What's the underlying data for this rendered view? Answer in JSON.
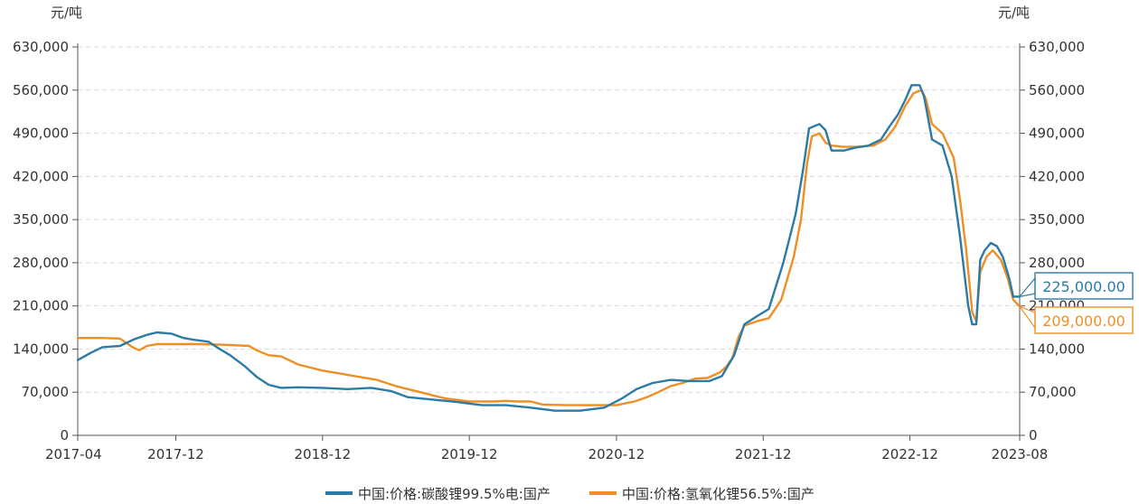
{
  "chart_data": {
    "type": "line",
    "y_unit_left": "元/吨",
    "y_unit_right": "元/吨",
    "ylim": [
      0,
      630000
    ],
    "y_ticks": [
      0,
      70000,
      140000,
      210000,
      280000,
      350000,
      420000,
      490000,
      560000,
      630000
    ],
    "y_tick_labels": [
      "0",
      "70,000",
      "140,000",
      "210,000",
      "280,000",
      "350,000",
      "420,000",
      "490,000",
      "560,000",
      "630,000"
    ],
    "x_range": [
      "2017-04-01",
      "2023-08-31"
    ],
    "x_ticks": [
      "2017-04-01",
      "2017-12-01",
      "2018-12-01",
      "2019-12-01",
      "2020-12-01",
      "2021-12-01",
      "2022-12-01",
      "2023-08-31"
    ],
    "x_tick_labels": [
      "2017-04",
      "2017-12",
      "2018-12",
      "2019-12",
      "2020-12",
      "2021-12",
      "2022-12",
      "2023-08"
    ],
    "grid": true,
    "legend_position": "bottom",
    "series": [
      {
        "name": "中国:价格:碳酸锂99.5%电:国产",
        "color": "#2b7ba6",
        "end_label": "225,000.00",
        "points": [
          [
            "2017-04-01",
            122000
          ],
          [
            "2017-05-01",
            133000
          ],
          [
            "2017-06-01",
            143000
          ],
          [
            "2017-07-15",
            145000
          ],
          [
            "2017-08-20",
            156000
          ],
          [
            "2017-09-20",
            163000
          ],
          [
            "2017-10-15",
            167000
          ],
          [
            "2017-11-20",
            165000
          ],
          [
            "2017-12-20",
            158000
          ],
          [
            "2018-01-15",
            155000
          ],
          [
            "2018-02-20",
            152000
          ],
          [
            "2018-03-20",
            140000
          ],
          [
            "2018-04-15",
            130000
          ],
          [
            "2018-05-20",
            113000
          ],
          [
            "2018-06-20",
            95000
          ],
          [
            "2018-07-20",
            82000
          ],
          [
            "2018-08-20",
            77000
          ],
          [
            "2018-10-01",
            78000
          ],
          [
            "2018-12-01",
            77000
          ],
          [
            "2019-02-01",
            75000
          ],
          [
            "2019-04-01",
            77000
          ],
          [
            "2019-05-20",
            72000
          ],
          [
            "2019-07-01",
            62000
          ],
          [
            "2019-09-01",
            58000
          ],
          [
            "2019-11-01",
            54000
          ],
          [
            "2020-01-01",
            49000
          ],
          [
            "2020-03-01",
            49000
          ],
          [
            "2020-05-01",
            45000
          ],
          [
            "2020-07-01",
            40000
          ],
          [
            "2020-09-01",
            40000
          ],
          [
            "2020-11-01",
            45000
          ],
          [
            "2020-12-15",
            60000
          ],
          [
            "2021-01-20",
            75000
          ],
          [
            "2021-03-01",
            85000
          ],
          [
            "2021-04-15",
            90000
          ],
          [
            "2021-06-01",
            88000
          ],
          [
            "2021-07-20",
            88000
          ],
          [
            "2021-08-20",
            96000
          ],
          [
            "2021-09-20",
            130000
          ],
          [
            "2021-10-15",
            180000
          ],
          [
            "2021-11-15",
            193000
          ],
          [
            "2021-12-15",
            205000
          ],
          [
            "2022-01-20",
            280000
          ],
          [
            "2022-02-20",
            360000
          ],
          [
            "2022-03-10",
            430000
          ],
          [
            "2022-03-25",
            498000
          ],
          [
            "2022-04-20",
            505000
          ],
          [
            "2022-05-05",
            495000
          ],
          [
            "2022-05-20",
            462000
          ],
          [
            "2022-06-20",
            462000
          ],
          [
            "2022-07-20",
            467000
          ],
          [
            "2022-08-20",
            470000
          ],
          [
            "2022-09-20",
            480000
          ],
          [
            "2022-10-10",
            500000
          ],
          [
            "2022-11-01",
            520000
          ],
          [
            "2022-11-20",
            545000
          ],
          [
            "2022-12-05",
            568000
          ],
          [
            "2022-12-25",
            568000
          ],
          [
            "2023-01-05",
            550000
          ],
          [
            "2023-01-25",
            480000
          ],
          [
            "2023-02-20",
            470000
          ],
          [
            "2023-03-15",
            420000
          ],
          [
            "2023-04-05",
            320000
          ],
          [
            "2023-04-25",
            210000
          ],
          [
            "2023-05-05",
            180000
          ],
          [
            "2023-05-15",
            180000
          ],
          [
            "2023-05-25",
            285000
          ],
          [
            "2023-06-05",
            300000
          ],
          [
            "2023-06-20",
            312000
          ],
          [
            "2023-07-05",
            307000
          ],
          [
            "2023-07-20",
            290000
          ],
          [
            "2023-08-05",
            255000
          ],
          [
            "2023-08-15",
            225000
          ],
          [
            "2023-08-31",
            225000
          ]
        ]
      },
      {
        "name": "中国:价格:氢氧化锂56.5%:国产",
        "color": "#ee8f26",
        "end_label": "209,000.00",
        "points": [
          [
            "2017-04-01",
            158000
          ],
          [
            "2017-06-01",
            158000
          ],
          [
            "2017-07-15",
            157000
          ],
          [
            "2017-08-15",
            143000
          ],
          [
            "2017-09-01",
            138000
          ],
          [
            "2017-09-20",
            145000
          ],
          [
            "2017-10-15",
            148000
          ],
          [
            "2017-11-20",
            148000
          ],
          [
            "2017-12-20",
            148000
          ],
          [
            "2018-02-01",
            148000
          ],
          [
            "2018-04-01",
            147000
          ],
          [
            "2018-06-01",
            145000
          ],
          [
            "2018-06-20",
            138000
          ],
          [
            "2018-07-20",
            130000
          ],
          [
            "2018-08-20",
            128000
          ],
          [
            "2018-10-01",
            115000
          ],
          [
            "2018-12-01",
            105000
          ],
          [
            "2019-01-15",
            100000
          ],
          [
            "2019-03-01",
            95000
          ],
          [
            "2019-04-15",
            90000
          ],
          [
            "2019-06-01",
            80000
          ],
          [
            "2019-08-01",
            70000
          ],
          [
            "2019-10-01",
            60000
          ],
          [
            "2019-12-01",
            55000
          ],
          [
            "2020-02-01",
            55000
          ],
          [
            "2020-03-01",
            56000
          ],
          [
            "2020-04-01",
            55000
          ],
          [
            "2020-05-01",
            55000
          ],
          [
            "2020-06-01",
            50000
          ],
          [
            "2020-08-01",
            49000
          ],
          [
            "2020-10-01",
            49000
          ],
          [
            "2020-12-01",
            49000
          ],
          [
            "2021-01-15",
            55000
          ],
          [
            "2021-02-15",
            62000
          ],
          [
            "2021-03-15",
            70000
          ],
          [
            "2021-04-15",
            80000
          ],
          [
            "2021-05-15",
            85000
          ],
          [
            "2021-06-15",
            92000
          ],
          [
            "2021-07-15",
            93000
          ],
          [
            "2021-08-15",
            102000
          ],
          [
            "2021-09-01",
            112000
          ],
          [
            "2021-09-15",
            125000
          ],
          [
            "2021-10-01",
            160000
          ],
          [
            "2021-10-15",
            178000
          ],
          [
            "2021-11-15",
            185000
          ],
          [
            "2021-12-15",
            190000
          ],
          [
            "2022-01-15",
            220000
          ],
          [
            "2022-02-15",
            290000
          ],
          [
            "2022-03-05",
            350000
          ],
          [
            "2022-03-20",
            440000
          ],
          [
            "2022-04-01",
            485000
          ],
          [
            "2022-04-20",
            490000
          ],
          [
            "2022-05-05",
            475000
          ],
          [
            "2022-05-20",
            470000
          ],
          [
            "2022-06-20",
            468000
          ],
          [
            "2022-07-20",
            468000
          ],
          [
            "2022-09-01",
            470000
          ],
          [
            "2022-10-01",
            480000
          ],
          [
            "2022-10-25",
            500000
          ],
          [
            "2022-11-20",
            535000
          ],
          [
            "2022-12-10",
            555000
          ],
          [
            "2022-12-30",
            560000
          ],
          [
            "2023-01-10",
            545000
          ],
          [
            "2023-01-25",
            505000
          ],
          [
            "2023-02-20",
            490000
          ],
          [
            "2023-03-20",
            450000
          ],
          [
            "2023-04-05",
            380000
          ],
          [
            "2023-04-20",
            300000
          ],
          [
            "2023-05-05",
            200000
          ],
          [
            "2023-05-15",
            185000
          ],
          [
            "2023-05-25",
            265000
          ],
          [
            "2023-06-10",
            290000
          ],
          [
            "2023-06-25",
            300000
          ],
          [
            "2023-07-15",
            285000
          ],
          [
            "2023-08-01",
            255000
          ],
          [
            "2023-08-15",
            220000
          ],
          [
            "2023-08-31",
            209000
          ]
        ]
      }
    ]
  }
}
